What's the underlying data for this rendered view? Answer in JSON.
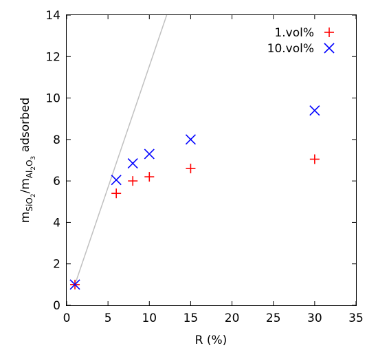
{
  "chart_data": {
    "type": "scatter",
    "title": "",
    "xlabel": "R (%)",
    "ylabel": {
      "parts": [
        "m",
        "SiO",
        "2",
        "/m",
        "Al",
        "2",
        "O",
        "3",
        " adsorbed"
      ]
    },
    "xlim": [
      0,
      35
    ],
    "ylim": [
      0,
      14
    ],
    "xticks": [
      "0",
      "5",
      "10",
      "15",
      "20",
      "25",
      "30",
      "35"
    ],
    "yticks": [
      "0",
      "2",
      "4",
      "6",
      "8",
      "10",
      "12",
      "14"
    ],
    "grid": false,
    "legend_position": "top-right",
    "series": [
      {
        "name": "1.vol%",
        "marker": "plus",
        "color": "#ff0000",
        "x": [
          1,
          6,
          8,
          10,
          15,
          30
        ],
        "y": [
          1.0,
          5.4,
          6.0,
          6.2,
          6.6,
          7.05
        ]
      },
      {
        "name": "10.vol%",
        "marker": "cross",
        "color": "#0000ff",
        "x": [
          1,
          6,
          8,
          10,
          15,
          30
        ],
        "y": [
          1.0,
          6.05,
          6.85,
          7.3,
          8.0,
          9.4
        ]
      }
    ],
    "reference_line": {
      "color": "#c0c0c0",
      "x": [
        1,
        12.1
      ],
      "y": [
        1.0,
        14
      ]
    }
  }
}
